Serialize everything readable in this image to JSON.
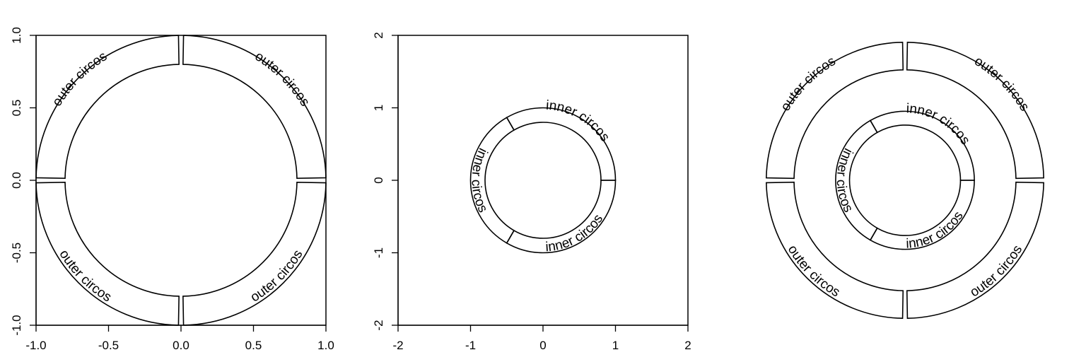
{
  "chart_data": [
    {
      "type": "circos",
      "panel": "left",
      "xlim": [
        -1.0,
        1.0
      ],
      "ylim": [
        -1.0,
        1.0
      ],
      "x_ticks": [
        "-1.0",
        "-0.5",
        "0.0",
        "0.5",
        "1.0"
      ],
      "y_ticks": [
        "-1.0",
        "-0.5",
        "0.0",
        "0.5",
        "1.0"
      ],
      "x_tick_values": [
        -1.0,
        -0.5,
        0.0,
        0.5,
        1.0
      ],
      "y_tick_values": [
        -1.0,
        -0.5,
        0.0,
        0.5,
        1.0
      ],
      "frame": true,
      "tracks": [
        {
          "name": "outer circos",
          "inner_radius": 0.8,
          "outer_radius": 1.0,
          "sectors": [
            {
              "label": "outer circos",
              "start_deg": 1,
              "end_deg": 89
            },
            {
              "label": "outer circos",
              "start_deg": 91,
              "end_deg": 179
            },
            {
              "label": "outer circos",
              "start_deg": 181,
              "end_deg": 269
            },
            {
              "label": "outer circos",
              "start_deg": 271,
              "end_deg": 359
            }
          ]
        }
      ]
    },
    {
      "type": "circos",
      "panel": "middle",
      "xlim": [
        -2,
        2
      ],
      "ylim": [
        -2,
        2
      ],
      "x_ticks": [
        "-2",
        "-1",
        "0",
        "1",
        "2"
      ],
      "y_ticks": [
        "-2",
        "-1",
        "0",
        "1",
        "2"
      ],
      "x_tick_values": [
        -2,
        -1,
        0,
        1,
        2
      ],
      "y_tick_values": [
        -2,
        -1,
        0,
        1,
        2
      ],
      "frame": true,
      "tracks": [
        {
          "name": "inner circos",
          "inner_radius": 0.8,
          "outer_radius": 1.0,
          "sectors": [
            {
              "label": "inner circos",
              "start_deg": 0,
              "end_deg": 120
            },
            {
              "label": "inner circos",
              "start_deg": 120,
              "end_deg": 240
            },
            {
              "label": "inner circos",
              "start_deg": 240,
              "end_deg": 360
            }
          ]
        }
      ]
    },
    {
      "type": "circos",
      "panel": "right",
      "xlim": [
        -2.1,
        2.1
      ],
      "ylim": [
        -2.1,
        2.1
      ],
      "frame": false,
      "tracks": [
        {
          "name": "outer circos",
          "inner_radius": 1.6,
          "outer_radius": 2.0,
          "sectors": [
            {
              "label": "outer circos",
              "start_deg": 1,
              "end_deg": 89
            },
            {
              "label": "outer circos",
              "start_deg": 91,
              "end_deg": 179
            },
            {
              "label": "outer circos",
              "start_deg": 181,
              "end_deg": 269
            },
            {
              "label": "outer circos",
              "start_deg": 271,
              "end_deg": 359
            }
          ]
        },
        {
          "name": "inner circos",
          "inner_radius": 0.8,
          "outer_radius": 1.0,
          "sectors": [
            {
              "label": "inner circos",
              "start_deg": 0,
              "end_deg": 120
            },
            {
              "label": "inner circos",
              "start_deg": 120,
              "end_deg": 240
            },
            {
              "label": "inner circos",
              "start_deg": 240,
              "end_deg": 360
            }
          ]
        }
      ]
    }
  ]
}
